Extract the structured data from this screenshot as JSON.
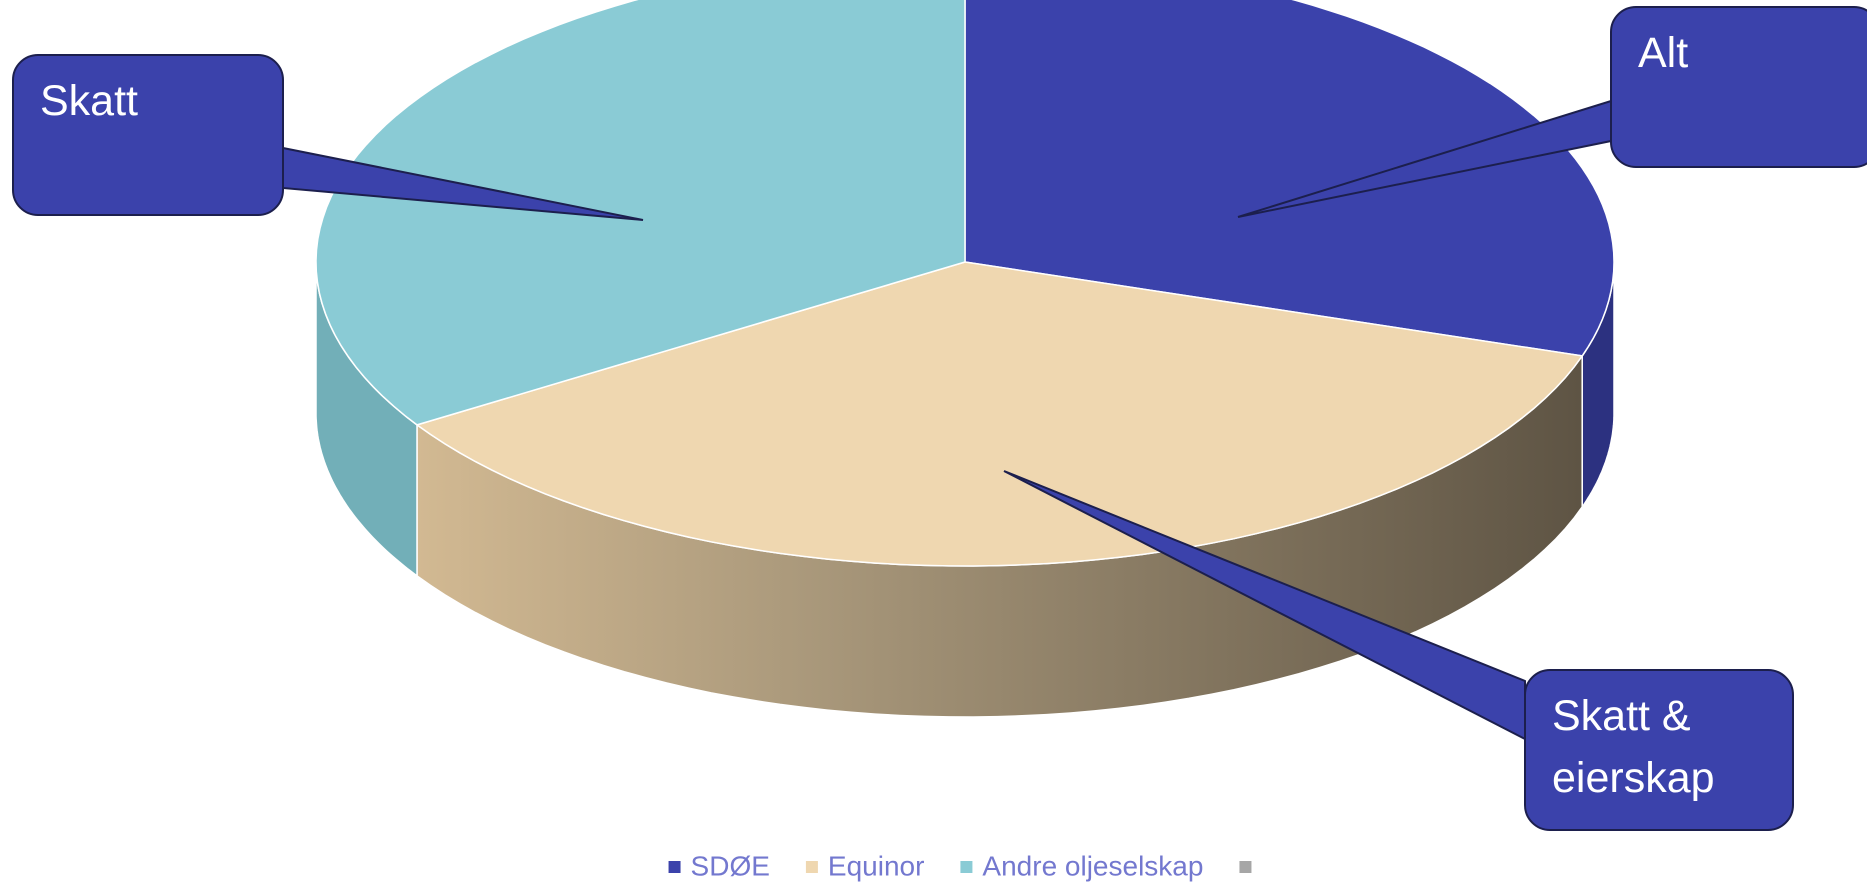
{
  "chart_data": {
    "type": "pie3d",
    "categories": [
      "SDØE",
      "Equinor",
      "Andre oljeselskap",
      null
    ],
    "values": [
      30,
      36,
      34,
      0
    ],
    "colors": [
      "#3b42ab",
      "#efd7b0",
      "#8acbd5",
      "#a6a6a6"
    ],
    "annotations": [
      "Skatt",
      "Alt",
      "Skatt & eierskap"
    ],
    "legend": "bottom"
  }
}
